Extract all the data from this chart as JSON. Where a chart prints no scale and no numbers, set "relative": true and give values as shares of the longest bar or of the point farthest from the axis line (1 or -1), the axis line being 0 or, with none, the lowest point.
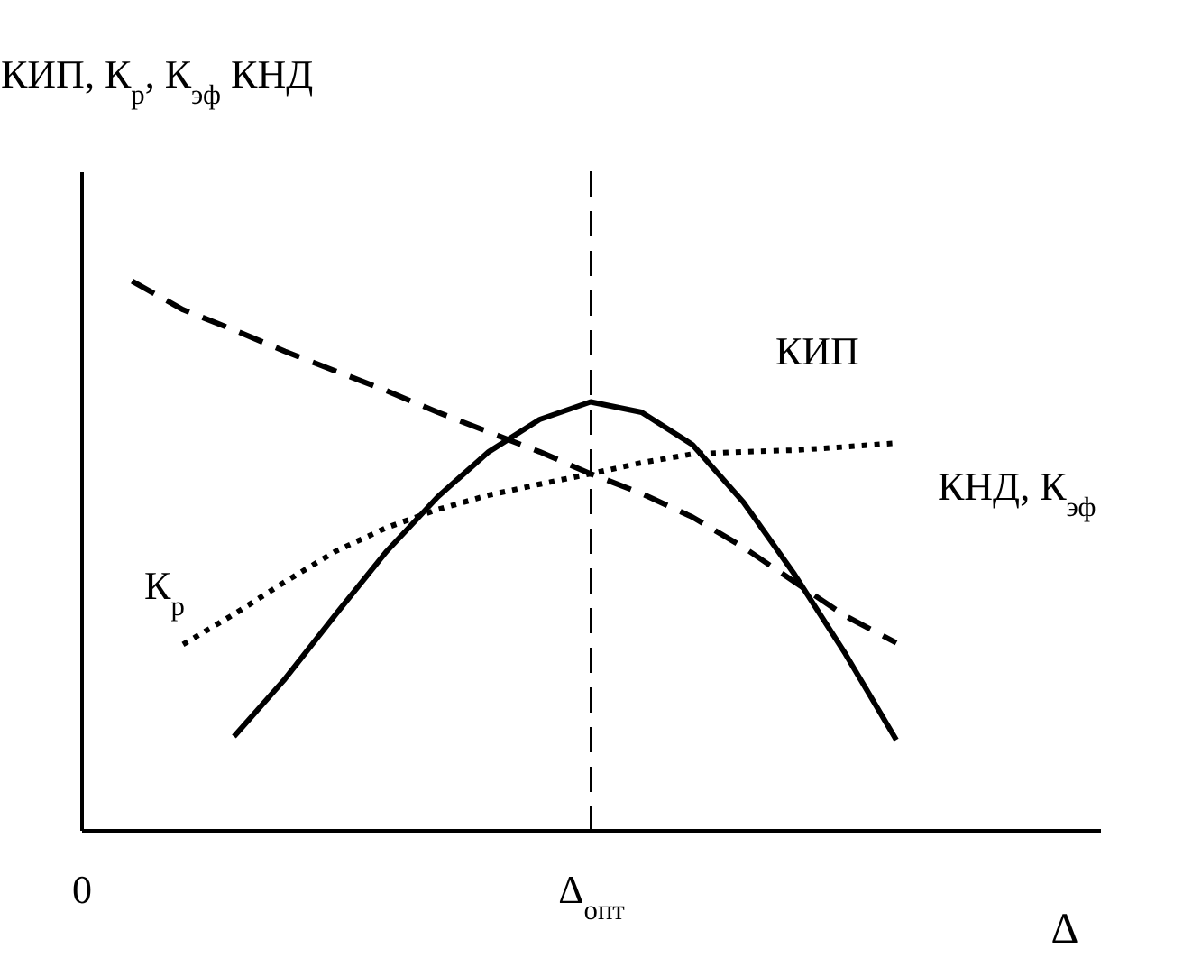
{
  "chart_data": {
    "type": "line",
    "relative": true,
    "xlabel": "Δ",
    "ylabel": "КИП, К$_{р}$, К$_{эф}$ КНД",
    "categories": [
      "0",
      null,
      null,
      null,
      null,
      null,
      null,
      null,
      null,
      null,
      "Δ$_{опт}$",
      null,
      null,
      null,
      null,
      null,
      null,
      null,
      null,
      null,
      null
    ],
    "series": [
      {
        "color": "#000000",
        "line_style": "dashed",
        "values": [
          null,
          1.0,
          0.948,
          0.911,
          0.872,
          0.836,
          0.8,
          0.761,
          0.725,
          0.689,
          0.649,
          0.613,
          0.57,
          0.515,
          0.452,
          0.39,
          0.341,
          null,
          null,
          null,
          null
        ]
      },
      {
        "color": "#000000",
        "line_style": "dotted",
        "values": [
          null,
          null,
          0.338,
          0.393,
          0.452,
          0.508,
          0.551,
          0.584,
          0.61,
          0.63,
          0.649,
          0.669,
          0.685,
          0.689,
          0.692,
          0.698,
          0.705,
          null,
          null,
          null,
          null
        ]
      },
      {
        "color": "#000000",
        "line_style": "solid",
        "values": [
          null,
          null,
          null,
          0.17,
          0.275,
          0.393,
          0.508,
          0.607,
          0.689,
          0.748,
          0.78,
          0.761,
          0.702,
          0.597,
          0.466,
          0.321,
          0.164,
          null,
          null,
          null,
          null
        ]
      }
    ],
    "ref_lines": [
      {
        "axis": "x",
        "value": "Δ$_{опт}$",
        "line_style": "dashed"
      }
    ],
    "annotations": [
      "К$_{р}$",
      "КИП",
      "КНД, К$_{эф}$"
    ],
    "grid": false
  }
}
